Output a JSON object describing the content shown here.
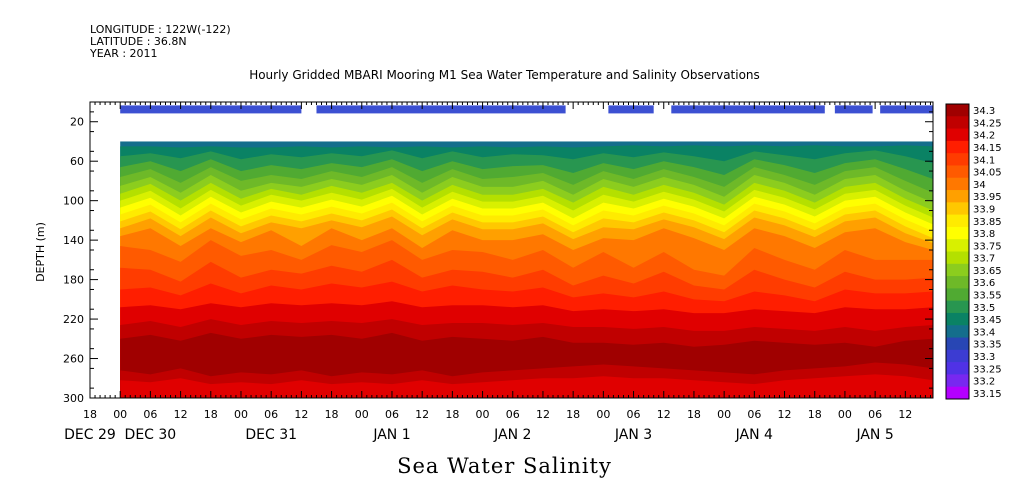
{
  "header": {
    "longitude": "LONGITUDE : 122W(-122)",
    "latitude": "LATITUDE : 36.8N",
    "year": "YEAR : 2011"
  },
  "chart_data": {
    "type": "heatmap",
    "title": "Hourly Gridded MBARI Mooring M1 Sea Water Temperature and Salinity Observations",
    "xlabel": "",
    "ylabel": "DEPTH (m)",
    "caption": "Sea Water Salinity",
    "x_range_hours": [
      -6,
      156
    ],
    "ylim": [
      300,
      0
    ],
    "y_ticks": [
      20,
      60,
      100,
      140,
      180,
      220,
      260,
      300
    ],
    "x_hour_labels": [
      "18",
      "00",
      "06",
      "12",
      "18",
      "00",
      "06",
      "12",
      "18",
      "00",
      "06",
      "12",
      "18",
      "00",
      "06",
      "12",
      "18",
      "00",
      "06",
      "12",
      "18",
      "00",
      "06",
      "12",
      "18",
      "00",
      "06",
      "12"
    ],
    "x_hour_label_times": [
      -6,
      0,
      6,
      12,
      18,
      24,
      30,
      36,
      42,
      48,
      54,
      60,
      66,
      72,
      78,
      84,
      90,
      96,
      102,
      108,
      114,
      120,
      126,
      132,
      138,
      144,
      150,
      156
    ],
    "x_day_labels": [
      {
        "label": "DEC 29",
        "t": -6
      },
      {
        "label": "DEC 30",
        "t": 6
      },
      {
        "label": "DEC 31",
        "t": 30
      },
      {
        "label": "JAN  1",
        "t": 54
      },
      {
        "label": "JAN  2",
        "t": 78
      },
      {
        "label": "JAN  3",
        "t": 102
      },
      {
        "label": "JAN  4",
        "t": 126
      },
      {
        "label": "JAN  5",
        "t": 150
      }
    ],
    "data_start_hour": 0,
    "data_start_depth": 40,
    "colorbar_levels": [
      "34.3",
      "34.25",
      "34.2",
      "34.15",
      "34.1",
      "34.05",
      "34",
      "33.95",
      "33.9",
      "33.85",
      "33.8",
      "33.75",
      "33.7",
      "33.65",
      "33.6",
      "33.55",
      "33.5",
      "33.45",
      "33.4",
      "33.35",
      "33.3",
      "33.25",
      "33.2",
      "33.15"
    ],
    "colorbar_colors": [
      "#a00000",
      "#c00000",
      "#e00000",
      "#ff1e00",
      "#ff3c00",
      "#ff5a00",
      "#ff7800",
      "#ffa000",
      "#ffc800",
      "#ffeb00",
      "#ffff00",
      "#d8f000",
      "#b4e000",
      "#8ccd1e",
      "#6eb928",
      "#50aa32",
      "#289650",
      "#0a8264",
      "#146e8c",
      "#2846b4",
      "#3c3cd2",
      "#5032e6",
      "#7828f0",
      "#b400ff"
    ],
    "surface_band": {
      "depth": 7.5,
      "color": "#3c50d2",
      "segments_hours": [
        [
          0,
          36
        ],
        [
          39,
          88.5
        ],
        [
          97,
          106
        ],
        [
          109.5,
          140
        ],
        [
          142,
          149.5
        ],
        [
          151,
          161.5
        ]
      ]
    },
    "contour_depths": {
      "hours": [
        0,
        6,
        12,
        18,
        24,
        30,
        36,
        42,
        48,
        54,
        60,
        66,
        72,
        78,
        84,
        90,
        96,
        102,
        108,
        114,
        120,
        126,
        132,
        138,
        144,
        150,
        156,
        161.5
      ],
      "33.45": [
        45,
        45,
        46,
        45,
        46,
        46,
        45,
        46,
        45,
        46,
        45,
        46,
        45,
        46,
        45,
        46,
        45,
        44,
        45,
        44,
        45,
        44,
        45,
        44,
        45,
        45,
        44,
        45
      ],
      "33.5": [
        55,
        52,
        57,
        50,
        58,
        53,
        56,
        52,
        55,
        49,
        57,
        50,
        56,
        53,
        54,
        58,
        52,
        56,
        51,
        55,
        60,
        50,
        54,
        58,
        52,
        49,
        55,
        62
      ],
      "33.55": [
        66,
        60,
        70,
        58,
        70,
        64,
        68,
        62,
        66,
        58,
        70,
        60,
        68,
        65,
        64,
        72,
        62,
        68,
        60,
        66,
        74,
        58,
        64,
        72,
        62,
        58,
        68,
        78
      ],
      "33.6": [
        76,
        68,
        82,
        66,
        80,
        74,
        78,
        70,
        76,
        66,
        82,
        68,
        78,
        76,
        72,
        84,
        70,
        78,
        68,
        76,
        86,
        66,
        74,
        84,
        70,
        66,
        80,
        92
      ],
      "33.65": [
        85,
        76,
        92,
        74,
        90,
        82,
        86,
        78,
        84,
        74,
        92,
        76,
        86,
        86,
        80,
        94,
        78,
        86,
        76,
        84,
        96,
        74,
        82,
        94,
        78,
        74,
        90,
        102
      ],
      "33.7": [
        93,
        83,
        100,
        82,
        98,
        88,
        94,
        85,
        92,
        82,
        100,
        84,
        94,
        94,
        88,
        102,
        86,
        94,
        84,
        92,
        104,
        82,
        90,
        102,
        86,
        82,
        98,
        110
      ],
      "33.75": [
        100,
        90,
        108,
        89,
        105,
        94,
        100,
        92,
        99,
        88,
        107,
        91,
        101,
        101,
        95,
        110,
        94,
        101,
        91,
        99,
        111,
        89,
        97,
        109,
        93,
        89,
        105,
        117
      ],
      "33.8": [
        107,
        97,
        115,
        96,
        112,
        101,
        107,
        99,
        106,
        95,
        114,
        98,
        108,
        108,
        102,
        118,
        102,
        108,
        98,
        106,
        118,
        96,
        104,
        116,
        100,
        96,
        112,
        124
      ],
      "33.85": [
        114,
        104,
        122,
        103,
        119,
        108,
        114,
        106,
        113,
        102,
        121,
        105,
        115,
        115,
        109,
        125,
        110,
        115,
        105,
        113,
        125,
        103,
        111,
        123,
        107,
        103,
        119,
        131
      ],
      "33.9": [
        121,
        111,
        129,
        110,
        126,
        115,
        121,
        113,
        120,
        109,
        128,
        112,
        122,
        122,
        116,
        132,
        118,
        122,
        112,
        120,
        132,
        110,
        118,
        130,
        114,
        110,
        126,
        138
      ],
      "33.95": [
        128,
        118,
        136,
        117,
        133,
        122,
        128,
        120,
        127,
        116,
        135,
        119,
        129,
        129,
        123,
        139,
        127,
        129,
        119,
        127,
        139,
        117,
        125,
        137,
        121,
        117,
        133,
        143
      ],
      "34": [
        136,
        128,
        146,
        128,
        142,
        130,
        146,
        128,
        140,
        128,
        148,
        130,
        140,
        140,
        134,
        150,
        138,
        140,
        128,
        138,
        150,
        128,
        136,
        148,
        132,
        128,
        142,
        150
      ],
      "34.05": [
        146,
        150,
        162,
        140,
        156,
        150,
        160,
        145,
        152,
        140,
        160,
        150,
        152,
        160,
        150,
        168,
        152,
        168,
        152,
        170,
        176,
        148,
        160,
        170,
        150,
        160,
        160,
        160
      ],
      "34.1": [
        168,
        170,
        182,
        162,
        178,
        170,
        174,
        166,
        172,
        160,
        178,
        170,
        172,
        178,
        170,
        186,
        176,
        184,
        172,
        186,
        190,
        170,
        180,
        188,
        172,
        180,
        180,
        178
      ],
      "34.15": [
        190,
        188,
        196,
        184,
        194,
        186,
        190,
        184,
        188,
        182,
        192,
        186,
        190,
        192,
        188,
        198,
        194,
        198,
        192,
        200,
        202,
        192,
        196,
        202,
        190,
        194,
        194,
        192
      ],
      "34.2": [
        208,
        206,
        210,
        204,
        208,
        204,
        206,
        204,
        206,
        202,
        208,
        206,
        206,
        208,
        206,
        212,
        210,
        212,
        210,
        214,
        214,
        210,
        212,
        214,
        208,
        210,
        210,
        208
      ],
      "34.25": [
        226,
        222,
        228,
        220,
        226,
        222,
        224,
        222,
        224,
        220,
        226,
        224,
        224,
        226,
        224,
        228,
        228,
        230,
        228,
        232,
        232,
        228,
        230,
        232,
        228,
        232,
        228,
        226
      ],
      "34.3": [
        240,
        236,
        242,
        234,
        240,
        236,
        238,
        236,
        240,
        234,
        242,
        238,
        240,
        242,
        238,
        244,
        244,
        246,
        244,
        248,
        246,
        242,
        244,
        246,
        244,
        248,
        242,
        240
      ],
      "34.25b": [
        272,
        276,
        270,
        278,
        274,
        276,
        272,
        278,
        274,
        276,
        272,
        278,
        274,
        272,
        270,
        268,
        266,
        268,
        270,
        272,
        274,
        276,
        272,
        270,
        268,
        264,
        266,
        270
      ],
      "34.2b": [
        282,
        284,
        280,
        286,
        284,
        286,
        282,
        286,
        284,
        286,
        282,
        286,
        284,
        282,
        280,
        280,
        278,
        280,
        280,
        282,
        284,
        286,
        282,
        280,
        278,
        276,
        278,
        282
      ]
    }
  }
}
